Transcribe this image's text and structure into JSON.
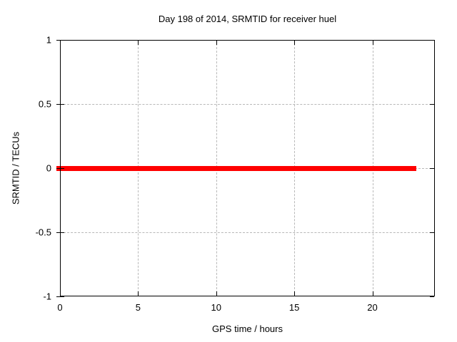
{
  "chart_data": {
    "type": "line",
    "title": "Day 198 of 2014, SRMTID for receiver huel",
    "xlabel": "GPS time / hours",
    "ylabel": "SRMTID / TECUs",
    "xlim": [
      0,
      24
    ],
    "ylim": [
      -1,
      1
    ],
    "x_ticks": [
      0,
      5,
      10,
      15,
      20
    ],
    "x_tick_labels": [
      "0",
      "5",
      "10",
      "15",
      "20"
    ],
    "y_ticks": [
      -1,
      -0.5,
      0,
      0.5,
      1
    ],
    "y_tick_labels": [
      "-1",
      "-0.5",
      "0",
      "0.5",
      "1"
    ],
    "grid": true,
    "legend": "none",
    "series": [
      {
        "name": "SRMTID",
        "color": "#ff0000",
        "x": [
          0,
          22.8
        ],
        "y": [
          0,
          0
        ],
        "line_thickness_px": 7
      }
    ],
    "colors": {
      "background": "#ffffff",
      "border": "#000000",
      "grid": "#b8b8b8",
      "text": "#000000"
    }
  }
}
